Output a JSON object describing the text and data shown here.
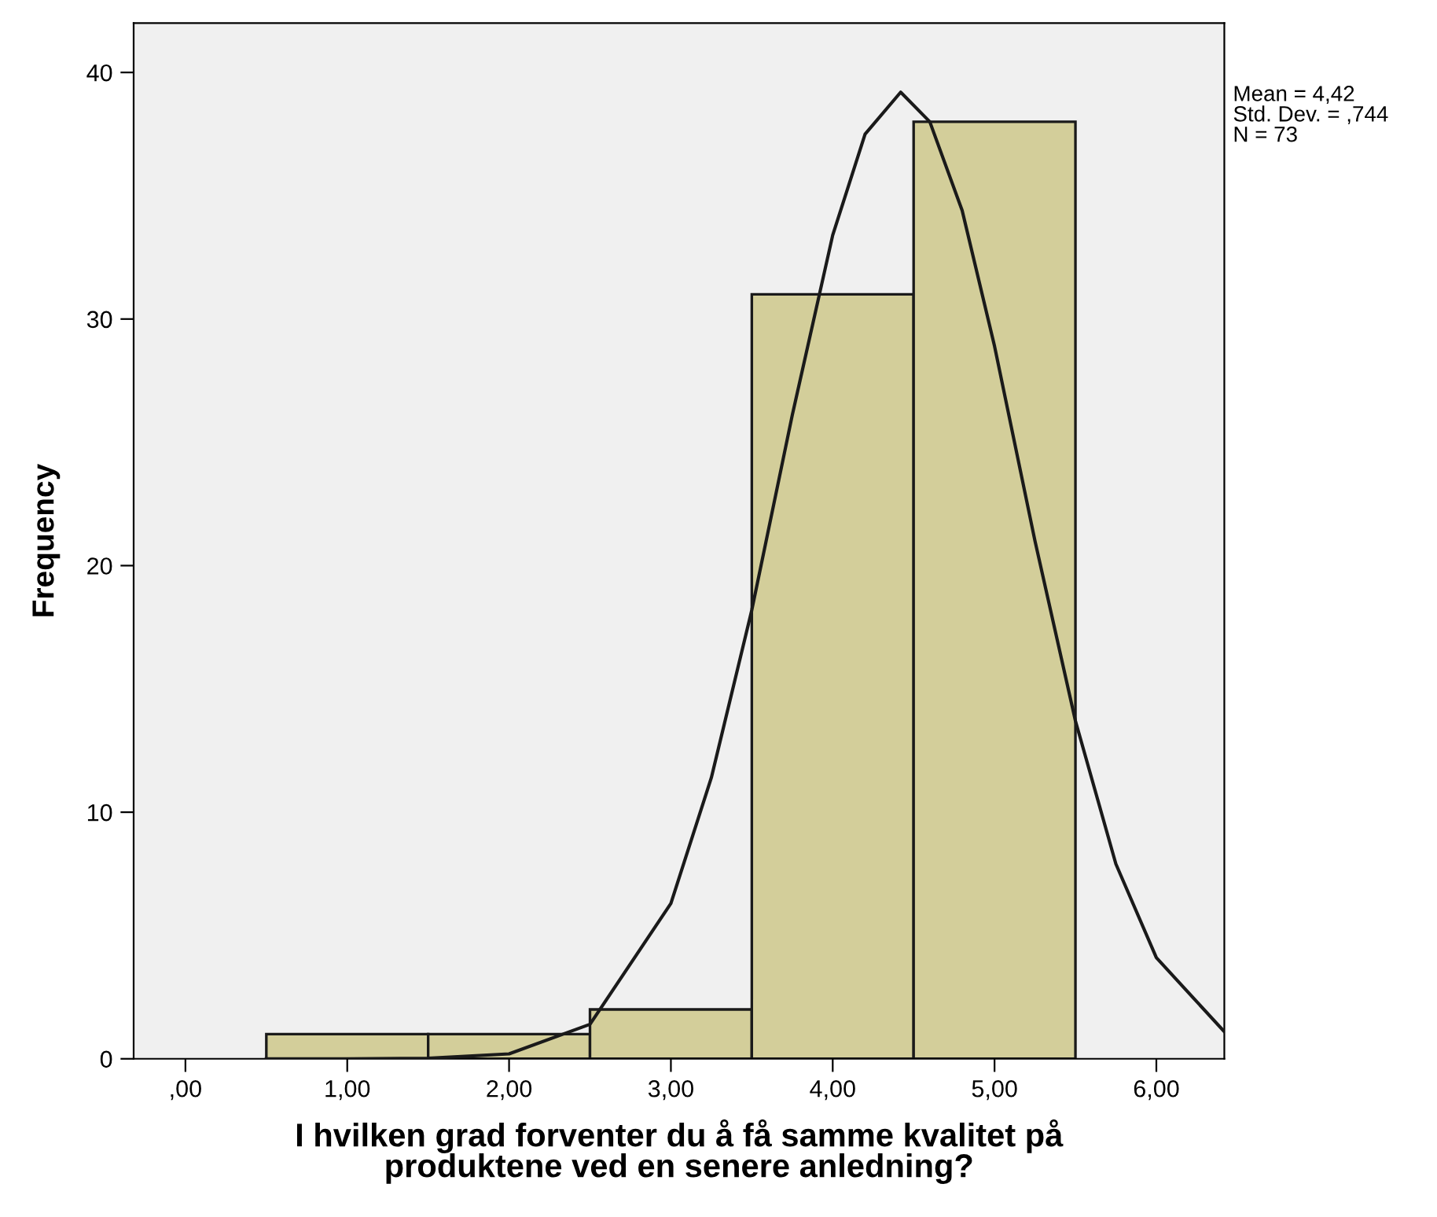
{
  "chart_data": {
    "type": "histogram",
    "xlabel": "I hvilken grad forventer du å få samme kvalitet på\nproduktene ved en senere anledning?",
    "ylabel": "Frequency",
    "bins": [
      0.5,
      1.5,
      2.5,
      3.5,
      4.5,
      5.5
    ],
    "values": [
      1,
      1,
      2,
      31,
      38
    ],
    "color": "#d3ce9a",
    "series": [
      {
        "type": "line",
        "color": "#1a1a1a",
        "x": [
          0.5,
          1.0,
          1.5,
          2.0,
          2.5,
          3.0,
          3.25,
          3.5,
          3.75,
          4.0,
          4.2,
          4.42,
          4.6,
          4.8,
          5.0,
          5.25,
          5.5,
          5.75,
          6.0,
          6.42
        ],
        "values": [
          0,
          0,
          0.02,
          0.2,
          1.4,
          6.3,
          11.4,
          18.2,
          26.1,
          33.4,
          37.5,
          39.2,
          38.0,
          34.4,
          28.9,
          21.0,
          13.7,
          7.9,
          4.1,
          1.1
        ]
      }
    ],
    "annotations": [
      "Mean = 4,42\nStd. Dev. = ,744\nN = 73"
    ],
    "xlim": [
      -0.32,
      6.42
    ],
    "ylim": [
      0,
      42
    ],
    "xticks": [
      {
        "value": 0,
        "label": ",00"
      },
      {
        "value": 1,
        "label": "1,00"
      },
      {
        "value": 2,
        "label": "2,00"
      },
      {
        "value": 3,
        "label": "3,00"
      },
      {
        "value": 4,
        "label": "4,00"
      },
      {
        "value": 5,
        "label": "5,00"
      },
      {
        "value": 6,
        "label": "6,00"
      }
    ],
    "yticks": [
      0,
      10,
      20,
      30,
      40
    ],
    "grid": false,
    "legend": false
  }
}
